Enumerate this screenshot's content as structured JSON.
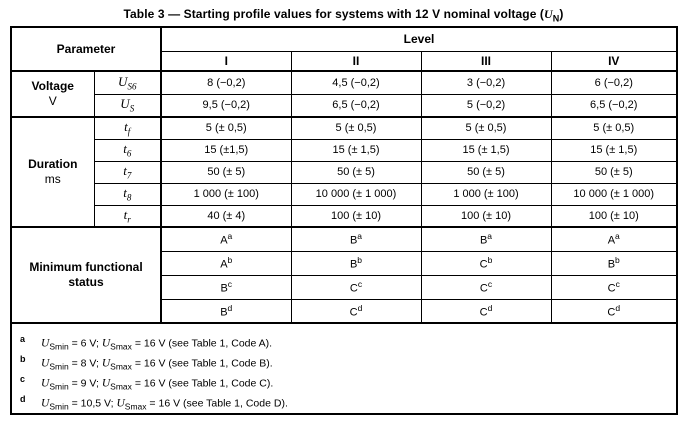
{
  "title": {
    "text": "Table 3 — Starting profile values for systems with 12 V nominal voltage (",
    "symbol": "U",
    "symbol_sub": "N",
    "close": ")"
  },
  "header": {
    "parameter": "Parameter",
    "level": "Level",
    "levels": [
      "I",
      "II",
      "III",
      "IV"
    ]
  },
  "voltage": {
    "group_label": "Voltage",
    "group_unit": "V",
    "rows": [
      {
        "symbol": "U",
        "subscript": "S6",
        "values": [
          "8 (−0,2)",
          "4,5 (−0,2)",
          "3 (−0,2)",
          "6 (−0,2)"
        ]
      },
      {
        "symbol": "U",
        "subscript": "S",
        "values": [
          "9,5 (−0,2)",
          "6,5 (−0,2)",
          "5 (−0,2)",
          "6,5 (−0,2)"
        ]
      }
    ]
  },
  "duration": {
    "group_label": "Duration",
    "group_unit": "ms",
    "rows": [
      {
        "symbol": "t",
        "subscript": "f",
        "values": [
          "5 (± 0,5)",
          "5 (± 0,5)",
          "5 (± 0,5)",
          "5 (± 0,5)"
        ]
      },
      {
        "symbol": "t",
        "subscript": "6",
        "values": [
          "15 (±1,5)",
          "15 (± 1,5)",
          "15 (± 1,5)",
          "15 (± 1,5)"
        ]
      },
      {
        "symbol": "t",
        "subscript": "7",
        "values": [
          "50 (± 5)",
          "50 (± 5)",
          "50 (± 5)",
          "50 (± 5)"
        ]
      },
      {
        "symbol": "t",
        "subscript": "8",
        "values": [
          "1 000 (± 100)",
          "10 000 (± 1 000)",
          "1 000 (± 100)",
          "10 000 (± 1 000)"
        ]
      },
      {
        "symbol": "t",
        "subscript": "r",
        "values": [
          "40 (± 4)",
          "100 (± 10)",
          "100 (± 10)",
          "100 (± 10)"
        ]
      }
    ]
  },
  "min_status": {
    "label": "Minimum functional status",
    "rows": [
      {
        "marker": "a",
        "values": [
          "A",
          "B",
          "B",
          "A"
        ]
      },
      {
        "marker": "b",
        "values": [
          "A",
          "B",
          "C",
          "B"
        ]
      },
      {
        "marker": "c",
        "values": [
          "B",
          "C",
          "C",
          "C"
        ]
      },
      {
        "marker": "d",
        "values": [
          "B",
          "C",
          "C",
          "C"
        ]
      }
    ]
  },
  "footnotes": [
    {
      "marker": "a",
      "symbol1": "U",
      "sub1": "Smin",
      "text1": " = 6 V; ",
      "symbol2": "U",
      "sub2": "Smax",
      "text2": " = 16 V (see Table 1, Code A)."
    },
    {
      "marker": "b",
      "symbol1": "U",
      "sub1": "Smin",
      "text1": " = 8 V; ",
      "symbol2": "U",
      "sub2": "Smax",
      "text2": " = 16 V (see Table 1, Code B)."
    },
    {
      "marker": "c",
      "symbol1": "U",
      "sub1": "Smin",
      "text1": " = 9 V; ",
      "symbol2": "U",
      "sub2": "Smax",
      "text2": " = 16 V (see Table 1, Code C)."
    },
    {
      "marker": "d",
      "symbol1": "U",
      "sub1": "Smin",
      "text1": " = 10,5 V; ",
      "symbol2": "U",
      "sub2": "Smax",
      "text2": " = 16 V (see Table 1, Code D)."
    }
  ]
}
